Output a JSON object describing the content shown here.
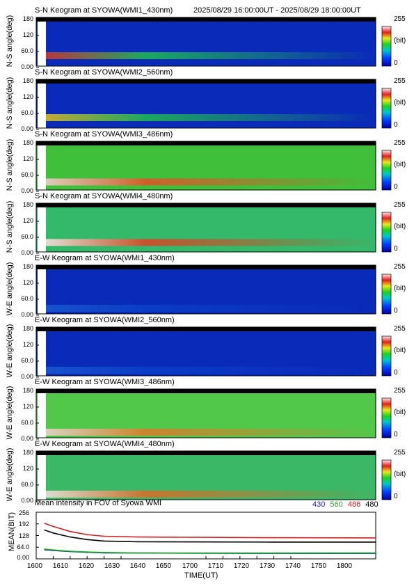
{
  "header": {
    "time_range": "2025/08/29 16:00:00UT - 2025/08/29 18:00:00UT"
  },
  "colorbar": {
    "max_label": "255",
    "unit_label": "(bit)",
    "min_label": "0"
  },
  "panels": [
    {
      "title": "S-N Keogram at SYOWA(WMI1_430nm)",
      "ylabel": "N-S angle(deg)",
      "yticks": [
        "180",
        "120",
        "60.0",
        "0.00"
      ],
      "bg": "#0a2ab8",
      "arc_color": "#1fbf4f",
      "arc_y": 0.2,
      "hot": "#d43b2a"
    },
    {
      "title": "S-N Keogram at SYOWA(WMI2_560nm)",
      "ylabel": "N-S angle(deg)",
      "yticks": [
        "180",
        "120",
        "60.0",
        "0.00"
      ],
      "bg": "#0a2ab8",
      "arc_color": "#1fbf4f",
      "arc_y": 0.2,
      "hot": "#e0c020"
    },
    {
      "title": "S-N Keogram at SYOWA(WMI3_486nm)",
      "ylabel": "N-S angle(deg)",
      "yticks": [
        "180",
        "120",
        "60.0",
        "0.00"
      ],
      "bg": "#3fbf3a",
      "arc_color": "#e85028",
      "arc_y": 0.15,
      "hot": "#f4d0d0"
    },
    {
      "title": "S-N Keogram at SYOWA(WMI4_480nm)",
      "ylabel": "N-S angle(deg)",
      "yticks": [
        "180",
        "120",
        "60.0",
        "0.00"
      ],
      "bg": "#34b86a",
      "arc_color": "#e04020",
      "arc_y": 0.18,
      "hot": "#ffe4e4"
    },
    {
      "title": "E-W Keogram at SYOWA(WMI1_430nm)",
      "ylabel": "W-E angle(deg)",
      "yticks": [
        "180",
        "120",
        "60.0",
        "0.00"
      ],
      "bg": "#0a2ab8",
      "arc_color": "#0a40c8",
      "arc_y": 0.1,
      "hot": "#1a5ad0"
    },
    {
      "title": "E-W Keogram at SYOWA(WMI2_560nm)",
      "ylabel": "W-E angle(deg)",
      "yticks": [
        "180",
        "120",
        "60.0",
        "0.00"
      ],
      "bg": "#0a2ab8",
      "arc_color": "#0a40c8",
      "arc_y": 0.1,
      "hot": "#1a5ad0"
    },
    {
      "title": "E-W Keogram at SYOWA(WMI3_486nm)",
      "ylabel": "W-E angle(deg)",
      "yticks": [
        "180",
        "120",
        "60.0",
        "0.00"
      ],
      "bg": "#52c84a",
      "arc_color": "#e07828",
      "arc_y": 0.1,
      "hot": "#f0d4d4"
    },
    {
      "title": "E-W Keogram at SYOWA(WMI4_480nm)",
      "ylabel": "W-E angle(deg)",
      "yticks": [
        "180",
        "120",
        "60.0",
        "0.00"
      ],
      "bg": "#3ab865",
      "arc_color": "#e06828",
      "arc_y": 0.1,
      "hot": "#f8e0e0"
    }
  ],
  "mean_panel": {
    "title": "Mean intensity in FOV of Syowa WMI",
    "ylabel": "MEAN(BIT)",
    "yticks": [
      "256",
      "192",
      "128",
      "64.0",
      "0.00"
    ],
    "xlabel": "TIME(UT)",
    "legend": [
      {
        "label": "430",
        "color": "#1a1ab0"
      },
      {
        "label": "560",
        "color": "#20b020"
      },
      {
        "label": "486",
        "color": "#d02020"
      },
      {
        "label": "480",
        "color": "#000000"
      }
    ]
  },
  "chart_data": {
    "type": "line",
    "title": "Mean intensity in FOV of Syowa WMI",
    "xlabel": "TIME(UT)",
    "ylabel": "MEAN(BIT)",
    "x": [
      "1600",
      "1610",
      "1620",
      "1630",
      "1640",
      "1650",
      "1700",
      "1710",
      "1720",
      "1730",
      "1740",
      "1750",
      "1800"
    ],
    "xlim": [
      1600,
      1800
    ],
    "ylim": [
      0,
      256
    ],
    "series": [
      {
        "name": "430",
        "color": "#1a1ab0",
        "x": [
          1605,
          1610,
          1620,
          1630,
          1640,
          1660,
          1700,
          1740,
          1800
        ],
        "values": [
          50,
          46,
          40,
          36,
          33,
          32,
          31,
          30,
          30
        ]
      },
      {
        "name": "560",
        "color": "#20b020",
        "x": [
          1605,
          1610,
          1620,
          1630,
          1640,
          1660,
          1700,
          1740,
          1800
        ],
        "values": [
          54,
          49,
          42,
          38,
          35,
          33,
          32,
          32,
          33
        ]
      },
      {
        "name": "486",
        "color": "#d02020",
        "x": [
          1605,
          1610,
          1620,
          1630,
          1640,
          1660,
          1700,
          1740,
          1800
        ],
        "values": [
          195,
          178,
          150,
          133,
          124,
          120,
          118,
          116,
          115
        ]
      },
      {
        "name": "480",
        "color": "#000000",
        "x": [
          1605,
          1610,
          1620,
          1630,
          1640,
          1660,
          1700,
          1740,
          1800
        ],
        "values": [
          158,
          142,
          120,
          106,
          98,
          94,
          93,
          92,
          92
        ]
      }
    ]
  }
}
